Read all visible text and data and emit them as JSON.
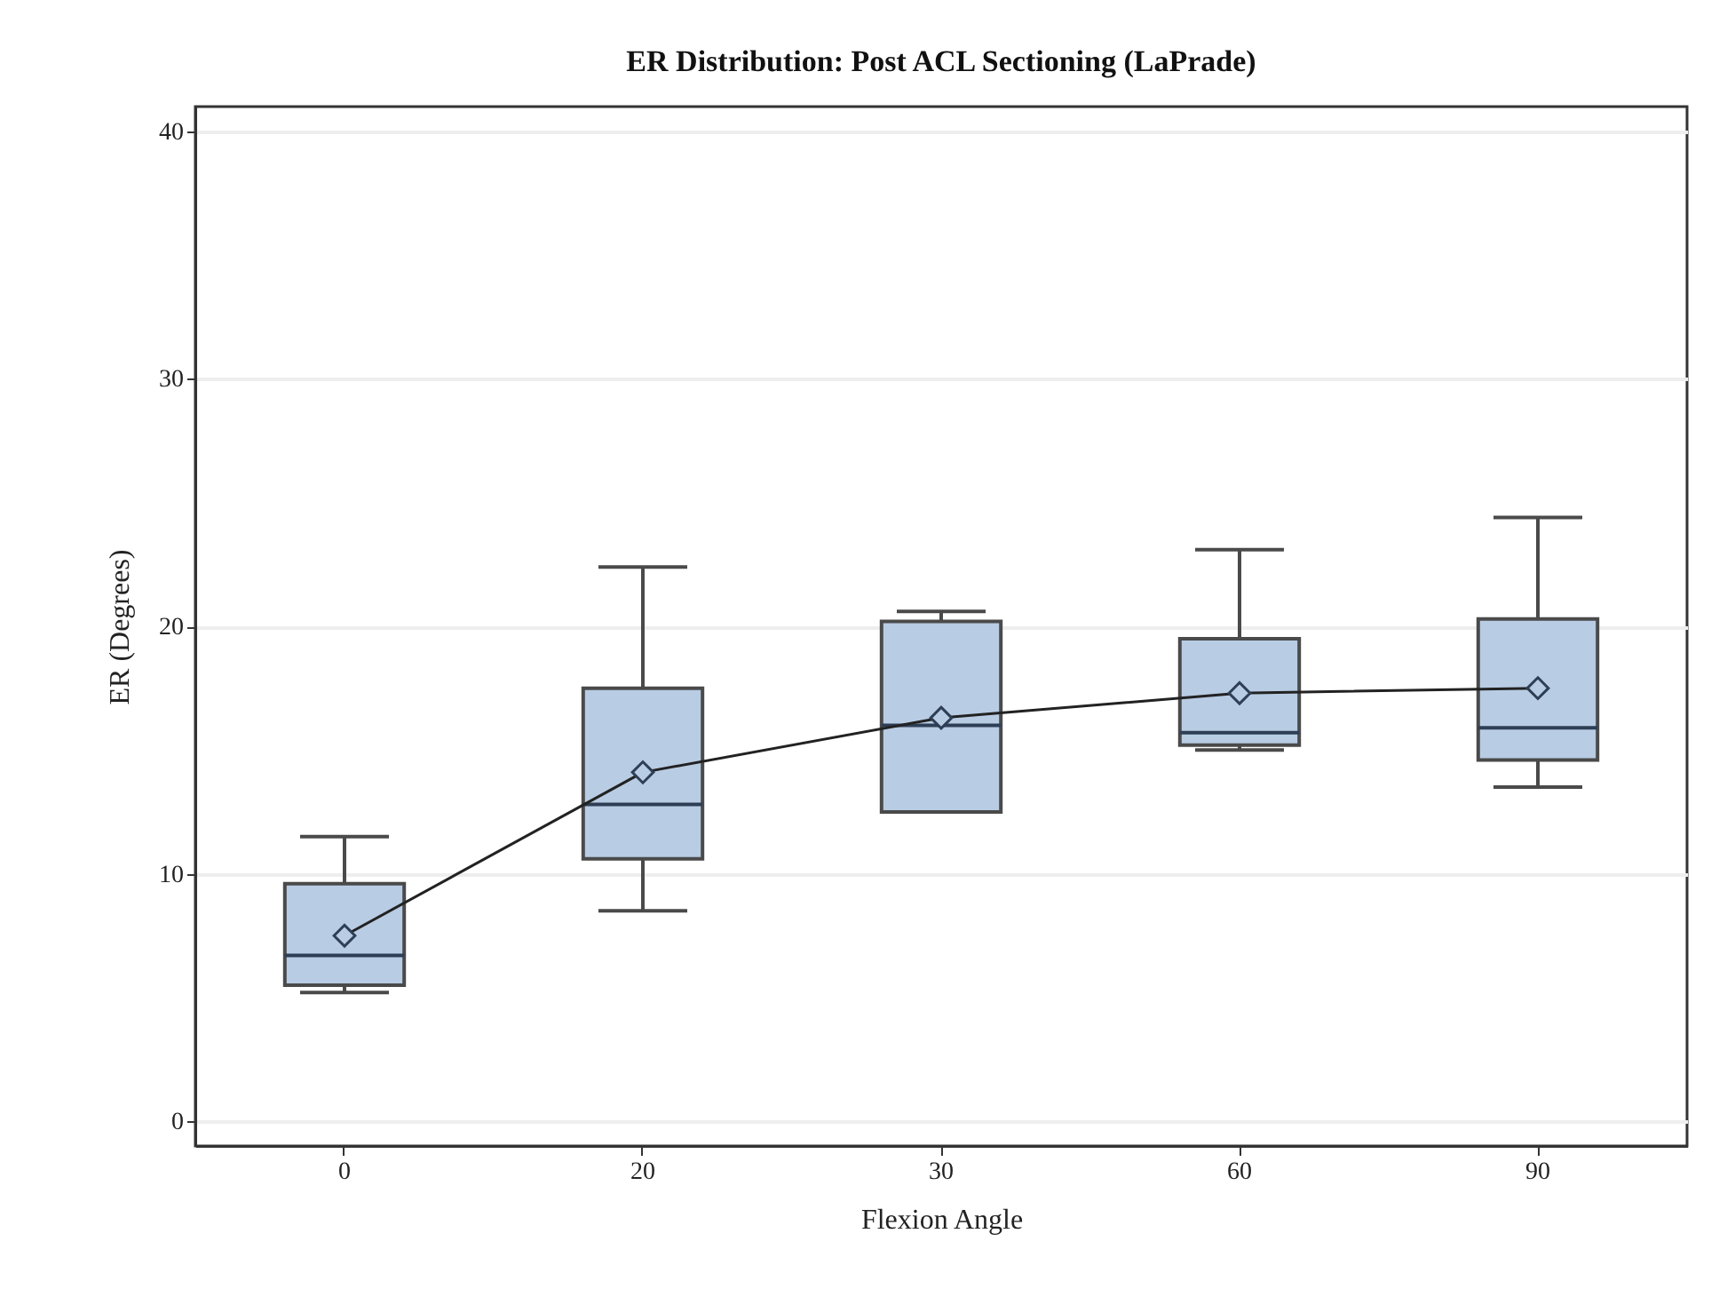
{
  "chart_data": {
    "type": "box",
    "title": "ER Distribution: Post ACL Sectioning (LaPrade)",
    "xlabel": "Flexion Angle",
    "ylabel": "ER (Degrees)",
    "categories": [
      "0",
      "20",
      "30",
      "60",
      "90"
    ],
    "boxes": [
      {
        "low": 5.2,
        "q1": 5.5,
        "median": 6.7,
        "q3": 9.6,
        "high": 11.5
      },
      {
        "low": 8.5,
        "q1": 10.6,
        "median": 12.8,
        "q3": 17.5,
        "high": 22.4
      },
      {
        "low": 12.5,
        "q1": 12.5,
        "median": 16.0,
        "q3": 20.2,
        "high": 20.6
      },
      {
        "low": 15.0,
        "q1": 15.2,
        "median": 15.7,
        "q3": 19.5,
        "high": 23.1
      },
      {
        "low": 13.5,
        "q1": 14.6,
        "median": 15.9,
        "q3": 20.3,
        "high": 24.4
      }
    ],
    "series": [
      {
        "type": "line",
        "color": "#222222",
        "values": [
          7.5,
          14.1,
          16.3,
          17.3,
          17.5
        ]
      }
    ],
    "color": "#b8cce4",
    "marker": "diamond",
    "ylim": [
      -1,
      41
    ],
    "yticks": [
      0,
      10,
      20,
      30,
      40
    ],
    "grid": "y"
  }
}
